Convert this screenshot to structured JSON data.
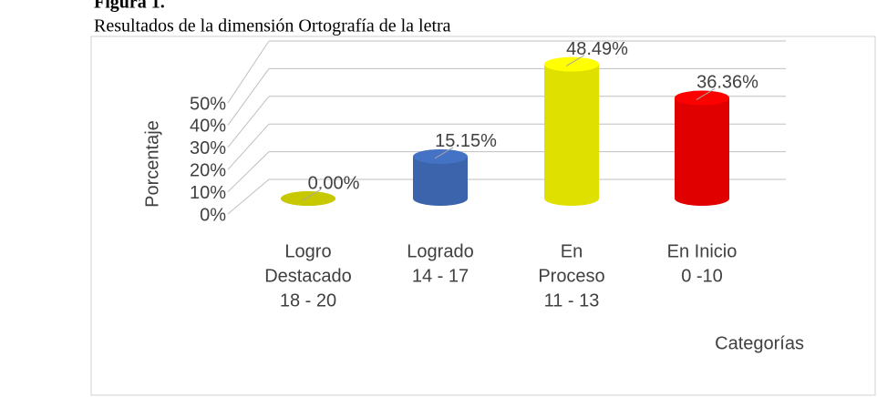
{
  "figure_label": "Figura 1.",
  "chart_data": {
    "type": "bar3d",
    "title": "Resultados de la dimensión Ortografía de la letra",
    "y_label": "Porcentaje",
    "x_label": "Categorías",
    "categories": [
      [
        "Logro",
        "Destacado",
        "18 - 20"
      ],
      [
        "Logrado",
        "14 - 17"
      ],
      [
        "En",
        "Proceso",
        "11 - 13"
      ],
      [
        "En Inicio",
        "0 -10"
      ]
    ],
    "values": [
      0.0,
      15.15,
      48.49,
      36.36
    ],
    "value_labels": [
      "0.00%",
      "15.15%",
      "48.49%",
      "36.36%"
    ],
    "colors": [
      "#c8c800",
      "#4472c4",
      "#ffff00",
      "#ff0000"
    ],
    "ylim": [
      0,
      50
    ],
    "yticks": [
      {
        "value": 0,
        "label": "0%"
      },
      {
        "value": 10,
        "label": "10%"
      },
      {
        "value": 20,
        "label": "20%"
      },
      {
        "value": 30,
        "label": "30%"
      },
      {
        "value": 40,
        "label": "40%"
      },
      {
        "value": 50,
        "label": "50%"
      }
    ],
    "grid": true
  }
}
